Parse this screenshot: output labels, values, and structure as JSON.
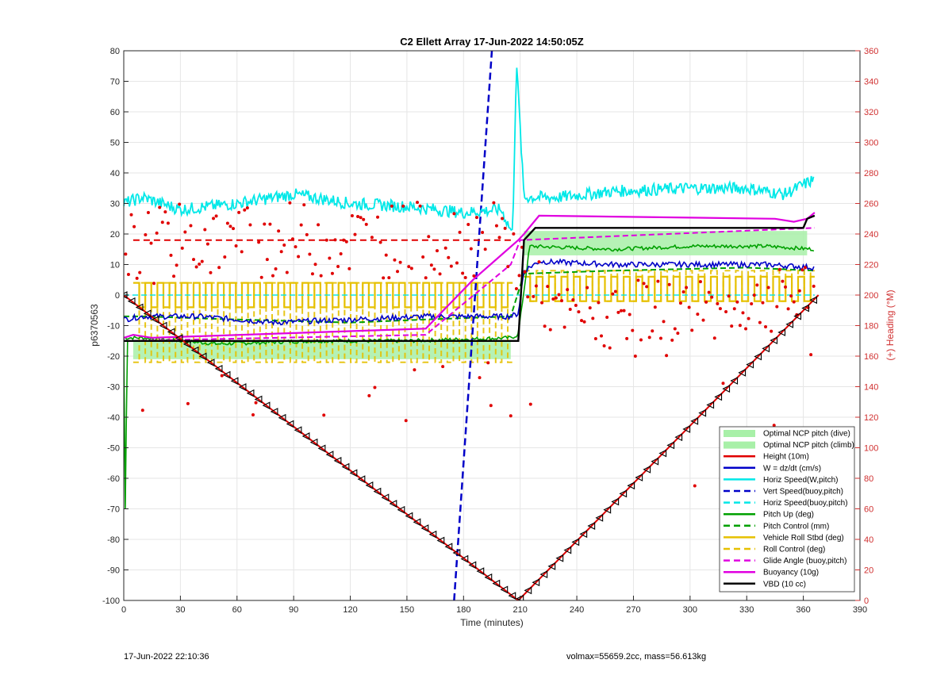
{
  "footer": {
    "left": "17-Jun-2022 22:10:36",
    "right": "volmax=55659.2cc, mass=56.613kg"
  },
  "colors": {
    "red": "#e00000",
    "blue": "#0000c8",
    "cyan": "#00e8e8",
    "green": "#00a000",
    "yellow": "#e6c000",
    "magenta": "#e000e0",
    "black": "#000000",
    "lightgreen": "#a8f0a8",
    "rightAxis": "#d03030"
  },
  "chart_data": {
    "type": "line",
    "title": "C2 Ellett Array 17-Jun-2022 14:50:05Z",
    "xlabel": "Time (minutes)",
    "ylabel": "p6370563",
    "y2label": "(+) Heading (°M)",
    "xlim": [
      0,
      390
    ],
    "ylim": [
      -100,
      80
    ],
    "y2lim": [
      0,
      360
    ],
    "xticks": [
      0,
      30,
      60,
      90,
      120,
      150,
      180,
      210,
      240,
      270,
      300,
      330,
      360,
      390
    ],
    "yticks": [
      -100,
      -90,
      -80,
      -70,
      -60,
      -50,
      -40,
      -30,
      -20,
      -10,
      0,
      10,
      20,
      30,
      40,
      50,
      60,
      70,
      80
    ],
    "y2ticks": [
      0,
      20,
      40,
      60,
      80,
      100,
      120,
      140,
      160,
      180,
      200,
      220,
      240,
      260,
      280,
      300,
      320,
      340,
      360
    ],
    "grid": true,
    "legend_position": "bottom-right",
    "legend": [
      {
        "label": "Optimal NCP pitch (dive)",
        "style": "patch",
        "color": "#a8f0a8"
      },
      {
        "label": "Optimal NCP pitch (climb)",
        "style": "patch",
        "color": "#a8f0a8"
      },
      {
        "label": "Height (10m)",
        "style": "solid",
        "color": "#e00000"
      },
      {
        "label": "W = dz/dt (cm/s)",
        "style": "solid",
        "color": "#0000c8"
      },
      {
        "label": "Horiz Speed(W,pitch)",
        "style": "solid",
        "color": "#00e8e8"
      },
      {
        "label": "Vert Speed(buoy,pitch)",
        "style": "dashed",
        "color": "#0000c8"
      },
      {
        "label": "Horiz Speed(buoy,pitch)",
        "style": "dashed",
        "color": "#00e8e8"
      },
      {
        "label": "Pitch Up (deg)",
        "style": "solid",
        "color": "#00a000"
      },
      {
        "label": "Pitch Control (mm)",
        "style": "dashed",
        "color": "#00a000"
      },
      {
        "label": "Vehicle Roll Stbd (deg)",
        "style": "solid",
        "color": "#e6c000"
      },
      {
        "label": "Roll Control (deg)",
        "style": "dashed",
        "color": "#e6c000"
      },
      {
        "label": "Glide Angle (buoy,pitch)",
        "style": "dashed",
        "color": "#e000e0"
      },
      {
        "label": "Buoyancy (10g)",
        "style": "solid",
        "color": "#e000e0"
      },
      {
        "label": "VBD (10 cc)",
        "style": "solid",
        "color": "#000000"
      }
    ],
    "series": [
      {
        "name": "Height (10m)",
        "x": [
          0,
          209,
          368
        ],
        "y": [
          0,
          -100,
          0
        ]
      },
      {
        "name": "VBD (10 cc)",
        "x": [
          0,
          1,
          208,
          209,
          212,
          218,
          360,
          362,
          366
        ],
        "y": [
          -15,
          -15,
          -15,
          -15,
          18,
          22,
          22,
          25,
          26
        ]
      },
      {
        "name": "Buoyancy (10g)",
        "x": [
          0,
          5,
          15,
          160,
          185,
          209,
          212,
          220,
          345,
          355,
          362,
          366
        ],
        "y": [
          -14,
          -13,
          -14,
          -11,
          5,
          18,
          20,
          26,
          25,
          24,
          25,
          27
        ]
      },
      {
        "name": "W = dz/dt (cm/s)",
        "x": [
          0,
          10,
          40,
          80,
          120,
          160,
          205,
          209,
          212,
          220,
          260,
          300,
          340,
          366
        ],
        "y": [
          -8,
          -7,
          -7,
          -9,
          -8,
          -7,
          -7,
          -6,
          8,
          11,
          10,
          10,
          10,
          9
        ]
      },
      {
        "name": "Pitch Up (deg)",
        "x": [
          0,
          10,
          50,
          100,
          150,
          205,
          209,
          215,
          260,
          300,
          340,
          366
        ],
        "y": [
          -14,
          -14,
          -16,
          -15,
          -15,
          -14,
          -13,
          16,
          15,
          16,
          16,
          15
        ]
      },
      {
        "name": "Pitch Control (mm)",
        "x": [
          0,
          10,
          60,
          120,
          160,
          205,
          212,
          260,
          330,
          366
        ],
        "y": [
          -7,
          -7,
          -8,
          -9,
          -8,
          -7,
          7,
          8,
          9,
          8
        ]
      },
      {
        "name": "Horiz Speed(W,pitch)",
        "x": [
          0,
          10,
          30,
          60,
          90,
          120,
          150,
          180,
          200,
          206,
          208,
          212,
          230,
          260,
          300,
          330,
          350,
          366
        ],
        "y": [
          30,
          32,
          28,
          30,
          33,
          30,
          29,
          27,
          28,
          20,
          77,
          32,
          32,
          34,
          35,
          35,
          33,
          38
        ]
      },
      {
        "name": "Vert Speed(buoy,pitch)",
        "x": [
          175,
          195
        ],
        "y": [
          -100,
          80
        ]
      },
      {
        "name": "Horiz Speed(buoy,pitch)",
        "x": [
          0,
          366
        ],
        "y": [
          0,
          0
        ]
      },
      {
        "name": "Glide Angle (buoy,pitch)",
        "x": [
          0,
          160,
          205,
          210,
          366
        ],
        "y": [
          -15,
          -13,
          10,
          18,
          22
        ]
      },
      {
        "name": "Vehicle Roll Stbd (deg)",
        "x": [
          5,
          205,
          212,
          366
        ],
        "y": [
          -2,
          -2,
          2,
          2
        ]
      },
      {
        "name": "Roll Control (deg)",
        "x": [
          5,
          205,
          212,
          366
        ],
        "y": [
          -22,
          -22,
          8,
          8
        ]
      },
      {
        "name": "Heading (+) (°M)",
        "x": [
          0,
          30,
          60,
          100,
          150,
          200,
          210,
          230,
          270,
          320,
          360
        ],
        "y": [
          230,
          235,
          236,
          236,
          236,
          236,
          220,
          185,
          190,
          190,
          200
        ]
      }
    ]
  }
}
